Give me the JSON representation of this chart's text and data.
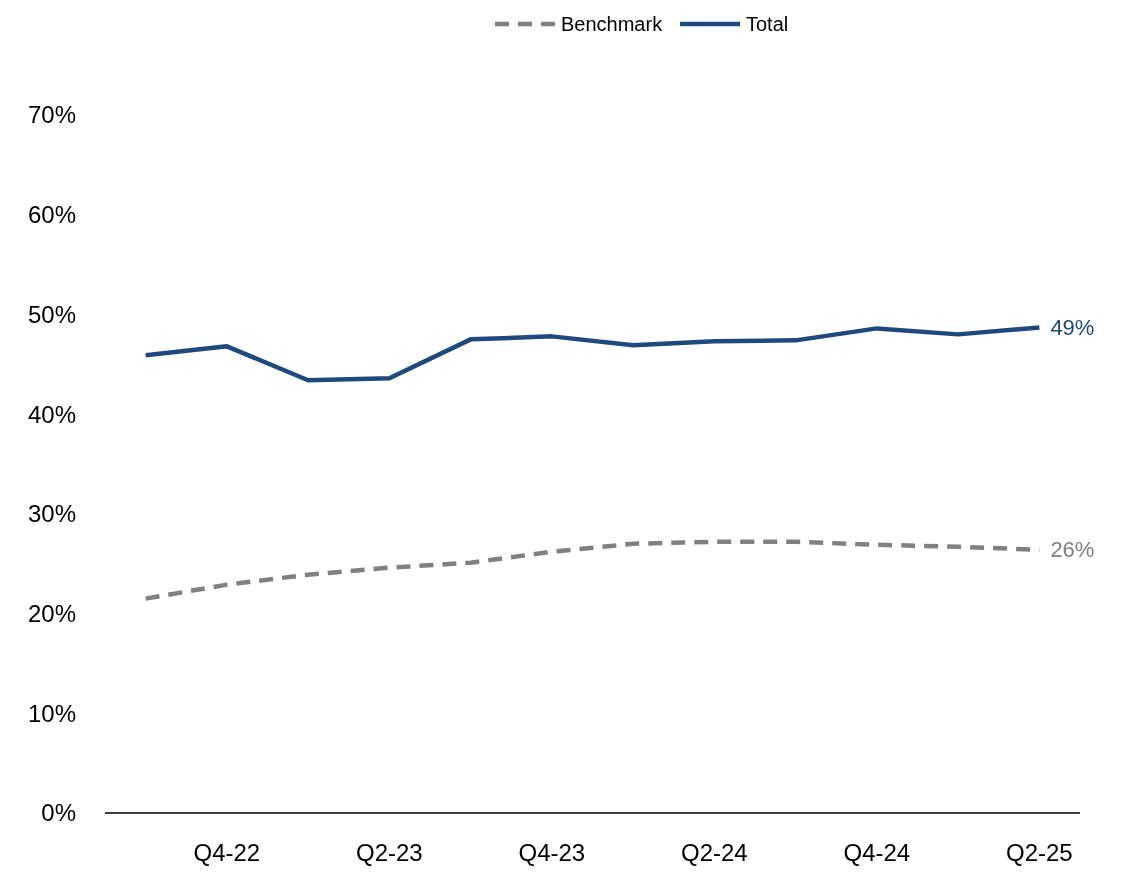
{
  "chart_data": {
    "type": "line",
    "categories": [
      null,
      "Q4-22",
      null,
      "Q2-23",
      null,
      "Q4-23",
      null,
      "Q2-24",
      null,
      "Q4-24",
      null,
      "Q2-25"
    ],
    "series": [
      {
        "name": "Benchmark",
        "color": "#808080",
        "line_style": "dashed",
        "values": [
          21.5,
          22.9,
          23.9,
          24.6,
          25.1,
          26.2,
          27.0,
          27.2,
          27.2,
          26.9,
          26.7,
          26.4
        ],
        "value_labels": [
          null,
          null,
          null,
          null,
          null,
          null,
          null,
          null,
          null,
          null,
          null,
          "26%"
        ]
      },
      {
        "name": "Total",
        "color": "#1f497d",
        "line_style": "solid",
        "values": [
          45.9,
          46.8,
          43.4,
          43.6,
          47.5,
          47.8,
          46.9,
          47.3,
          47.4,
          48.6,
          48.0,
          48.7
        ],
        "value_labels": [
          null,
          null,
          null,
          null,
          null,
          null,
          null,
          null,
          null,
          null,
          null,
          "49%"
        ]
      }
    ],
    "ylim": [
      0,
      70
    ],
    "yticks": [
      {
        "value": 0,
        "label": "0%"
      },
      {
        "value": 10,
        "label": "10%"
      },
      {
        "value": 20,
        "label": "20%"
      },
      {
        "value": 30,
        "label": "30%"
      },
      {
        "value": 40,
        "label": "40%"
      },
      {
        "value": 50,
        "label": "50%"
      },
      {
        "value": 60,
        "label": "60%"
      },
      {
        "value": 70,
        "label": "70%"
      }
    ],
    "grid": false,
    "legend": "top",
    "marker": "none"
  }
}
